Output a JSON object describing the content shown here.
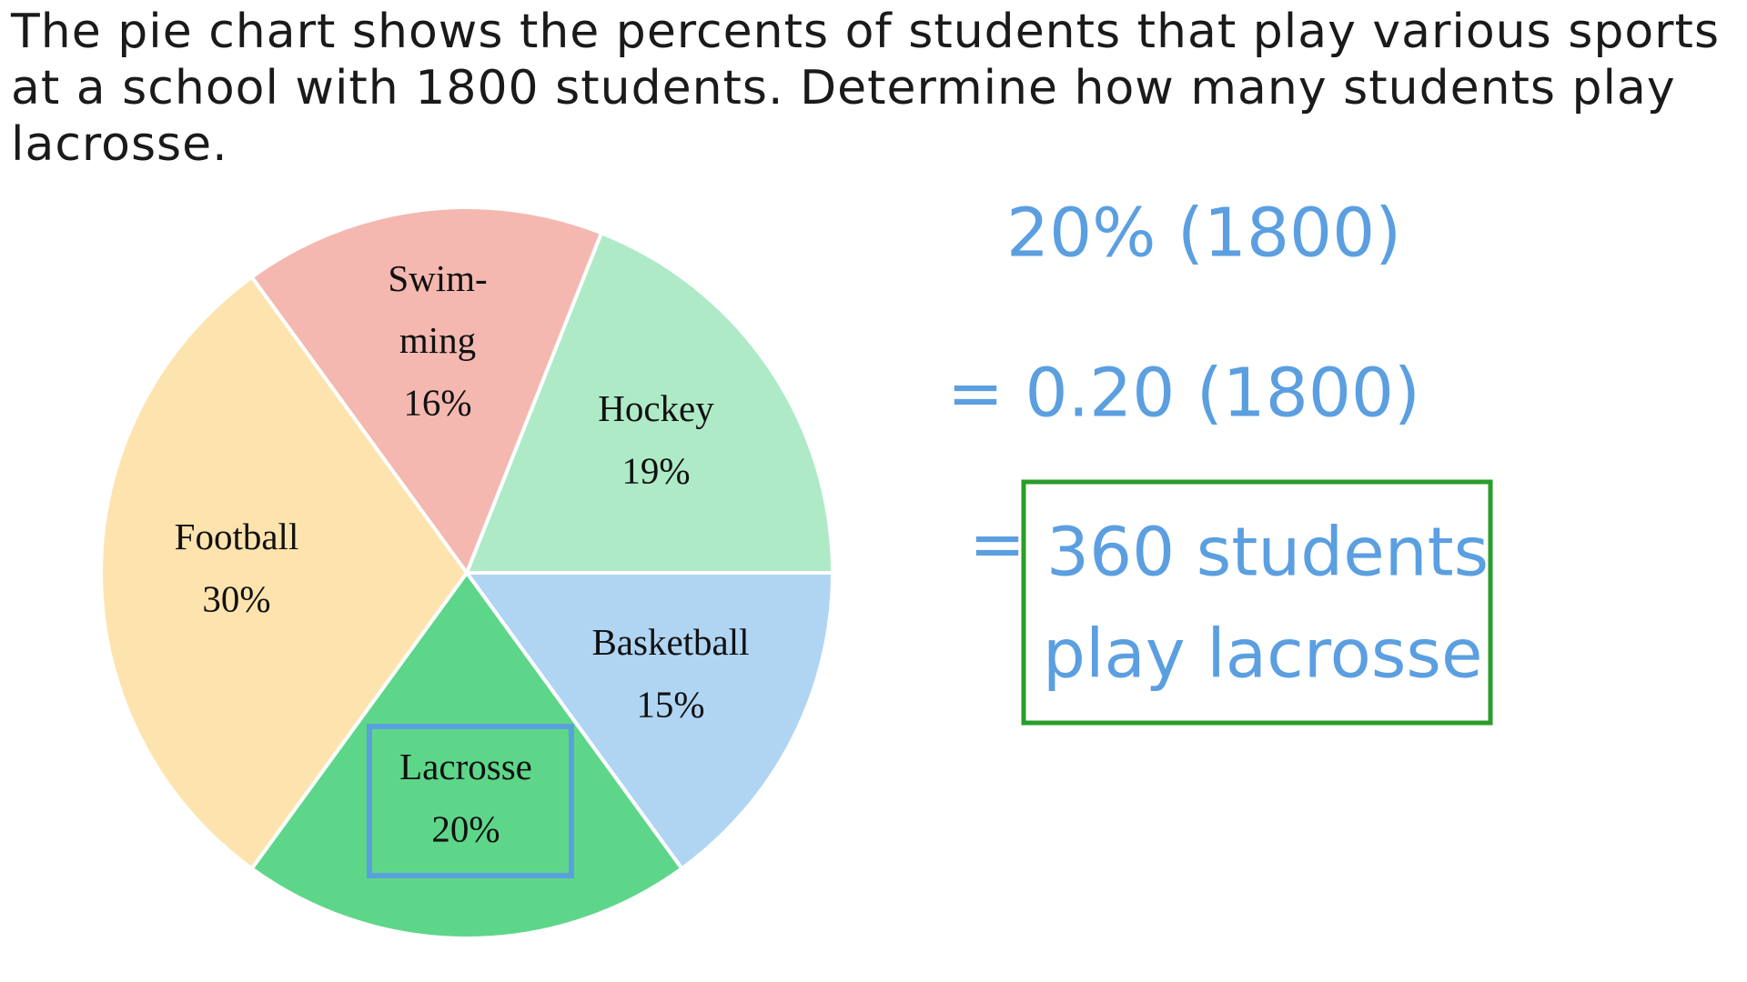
{
  "problem": "The pie chart shows the percents of students that play various sports at a school with 1800 students. Determine how many students play lacrosse.",
  "chart_data": {
    "type": "pie",
    "categories": [
      "Swim-\nming",
      "Hockey",
      "Basketball",
      "Lacrosse",
      "Football"
    ],
    "values": [
      16,
      19,
      15,
      20,
      30
    ],
    "value_labels": [
      "16%",
      "19%",
      "15%",
      "20%",
      "30%"
    ],
    "colors": [
      "#f4b8b0",
      "#aeeac6",
      "#afd5f3",
      "#5ed68a",
      "#fde4ae"
    ]
  },
  "work": {
    "lines": [
      "20% (1800)",
      "= 0.20 (1800)"
    ],
    "answer_prefix": "=",
    "answer": [
      "360 students",
      "play lacrosse"
    ]
  }
}
